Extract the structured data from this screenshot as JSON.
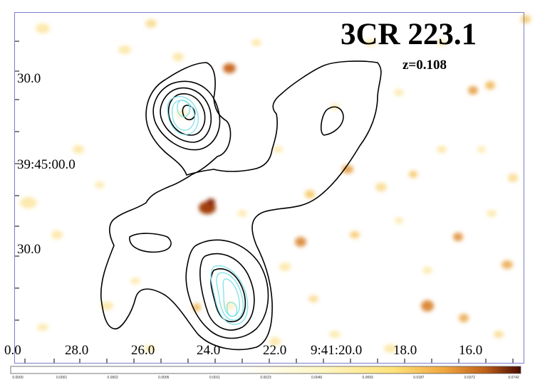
{
  "title": "3CR 223.1",
  "redshift": "z=0.108",
  "dec_ticks": [
    "30.0",
    "39:45:00.0",
    "30.0"
  ],
  "ra_ticks": [
    "0.0",
    "28.0",
    "26.0",
    "24.0",
    "22.0",
    "9:41:20.0",
    "18.0",
    "16.0"
  ],
  "colorbar": {
    "ticks": [
      "0.0000",
      "0.0001",
      "0.0002",
      "0.0005",
      "0.0011",
      "0.0023",
      "0.0046",
      "0.0093",
      "0.0187",
      "0.0372",
      "0.0742"
    ],
    "colors": [
      "#ffffff",
      "#fff6c0",
      "#ffe27a",
      "#f4b23c",
      "#d0731f",
      "#8a2a07",
      "#4a0b00"
    ]
  },
  "colors": {
    "frame": "#7b7fc8",
    "radio_contours": "#000000",
    "xray_contours": "#7fe0e8"
  }
}
